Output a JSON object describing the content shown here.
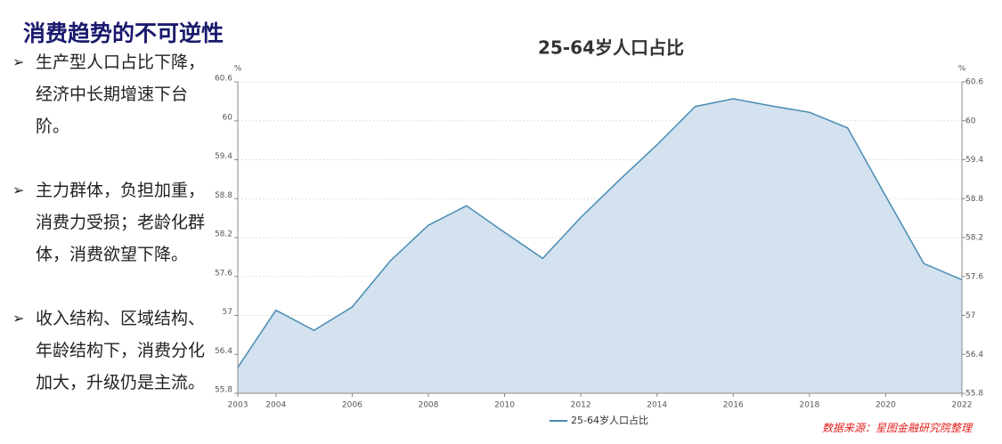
{
  "title": "消费趋势的不可逆性",
  "bullets": [
    "生产型人口占比下降，经济中长期增速下台阶。",
    "主力群体，负担加重，消费力受损；老龄化群体，消费欲望下降。",
    "收入结构、区域结构、年龄结构下，消费分化加大，升级仍是主流。"
  ],
  "source": "数据来源：星图金融研究院整理",
  "chart_data": {
    "type": "area",
    "title": "25-64岁人口占比",
    "y_unit": "%",
    "y2_unit": "%",
    "x": [
      2003,
      2004,
      2005,
      2006,
      2007,
      2008,
      2009,
      2010,
      2011,
      2012,
      2013,
      2014,
      2015,
      2016,
      2017,
      2018,
      2019,
      2020,
      2021,
      2022
    ],
    "series": [
      {
        "name": "25-64岁人口占比",
        "color": "#4a8cb4",
        "fill": "#d3e2ee",
        "values": [
          56.2,
          57.08,
          56.77,
          57.13,
          57.84,
          58.39,
          58.69,
          58.28,
          57.88,
          58.51,
          59.08,
          59.63,
          60.22,
          60.34,
          60.23,
          60.13,
          59.89,
          58.84,
          57.8,
          57.55
        ]
      }
    ],
    "xlim": [
      2003,
      2022
    ],
    "xticks": [
      2003,
      2004,
      2006,
      2008,
      2010,
      2012,
      2014,
      2016,
      2018,
      2020,
      2022
    ],
    "ylim": [
      55.8,
      60.6
    ],
    "yticks": [
      55.8,
      56.4,
      57,
      57.6,
      58.2,
      58.8,
      59.4,
      60,
      60.6
    ],
    "y2lim": [
      55.8,
      60.6
    ],
    "y2ticks": [
      55.8,
      56.4,
      57,
      57.6,
      58.2,
      58.8,
      59.4,
      60,
      60.6
    ],
    "grid": true,
    "legend": "bottom"
  }
}
